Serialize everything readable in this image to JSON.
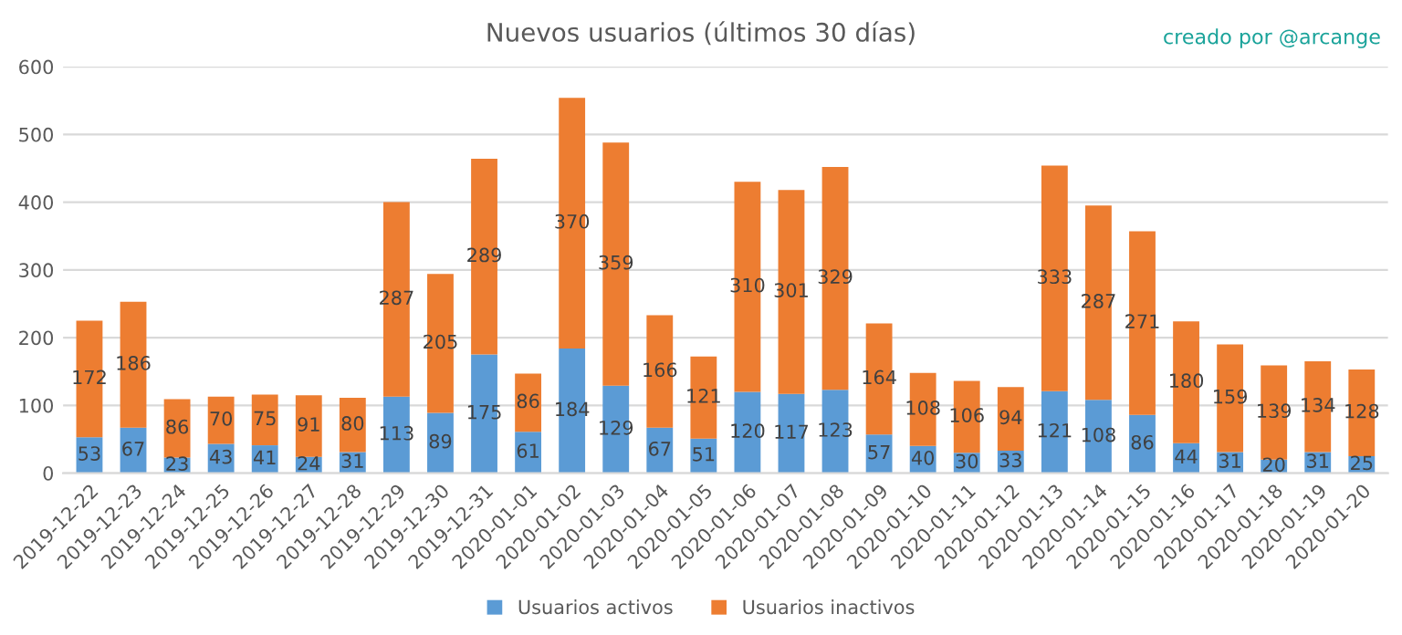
{
  "chart_data": {
    "type": "bar",
    "title": "Nuevos usuarios (últimos 30 días)",
    "annotations": [
      "creado por @arcange"
    ],
    "categories": [
      "2019-12-22",
      "2019-12-23",
      "2019-12-24",
      "2019-12-25",
      "2019-12-26",
      "2019-12-27",
      "2019-12-28",
      "2019-12-29",
      "2019-12-30",
      "2019-12-31",
      "2020-01-01",
      "2020-01-02",
      "2020-01-03",
      "2020-01-04",
      "2020-01-05",
      "2020-01-06",
      "2020-01-07",
      "2020-01-08",
      "2020-01-09",
      "2020-01-10",
      "2020-01-11",
      "2020-01-12",
      "2020-01-13",
      "2020-01-14",
      "2020-01-15",
      "2020-01-16",
      "2020-01-17",
      "2020-01-18",
      "2020-01-19",
      "2020-01-20"
    ],
    "series": [
      {
        "name": "Usuarios activos",
        "color": "#5b9bd5",
        "values": [
          53,
          67,
          23,
          43,
          41,
          24,
          31,
          113,
          89,
          175,
          61,
          184,
          129,
          67,
          51,
          120,
          117,
          123,
          57,
          40,
          30,
          33,
          121,
          108,
          86,
          44,
          31,
          20,
          31,
          25
        ]
      },
      {
        "name": "Usuarios inactivos",
        "color": "#ed7d31",
        "values": [
          172,
          186,
          86,
          70,
          75,
          91,
          80,
          287,
          205,
          289,
          86,
          370,
          359,
          166,
          121,
          310,
          301,
          329,
          164,
          108,
          106,
          94,
          333,
          287,
          271,
          180,
          159,
          139,
          134,
          128
        ]
      }
    ],
    "stacked": true,
    "data_labels": true,
    "ylim": [
      0,
      600
    ],
    "yticks": [
      0,
      100,
      200,
      300,
      400,
      500,
      600
    ],
    "grid": "y",
    "legend": "bottom"
  }
}
